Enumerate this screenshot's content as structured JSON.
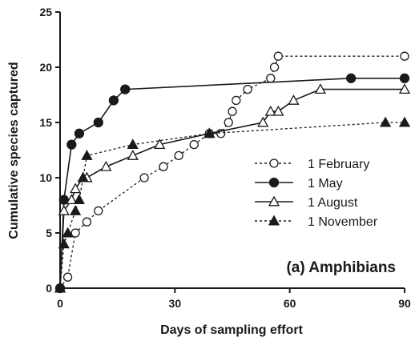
{
  "chart_data": {
    "type": "line",
    "xlabel": "Days of sampling effort",
    "ylabel": "Cumulative species captured",
    "xlim": [
      0,
      90
    ],
    "ylim": [
      0,
      25
    ],
    "xticks": [
      0,
      30,
      60,
      90
    ],
    "yticks": [
      0,
      5,
      10,
      15,
      20,
      25
    ],
    "grid": false,
    "legend_position": "right",
    "annotation": "(a) Amphibians",
    "series": [
      {
        "name": "1 February",
        "marker": "open-circle",
        "line": "dashed",
        "x": [
          0,
          2,
          4,
          7,
          10,
          22,
          27,
          31,
          35,
          39,
          42,
          44,
          45,
          46,
          49,
          55,
          56,
          57,
          90
        ],
        "y": [
          0,
          1,
          5,
          6,
          7,
          10,
          11,
          12,
          13,
          14,
          14,
          15,
          16,
          17,
          18,
          19,
          20,
          21,
          21
        ]
      },
      {
        "name": "1 May",
        "marker": "filled-circle",
        "line": "solid",
        "x": [
          0,
          1,
          3,
          5,
          10,
          14,
          17,
          76,
          90
        ],
        "y": [
          0,
          8,
          13,
          14,
          15,
          17,
          18,
          19,
          19
        ]
      },
      {
        "name": "1 August",
        "marker": "open-triangle",
        "line": "solid",
        "x": [
          0,
          1,
          3,
          4,
          6,
          7,
          12,
          19,
          26,
          39,
          53,
          55,
          57,
          61,
          68,
          90
        ],
        "y": [
          0,
          7,
          8,
          9,
          10,
          10,
          11,
          12,
          13,
          14,
          15,
          16,
          16,
          17,
          18,
          18
        ]
      },
      {
        "name": "1 November",
        "marker": "filled-triangle",
        "line": "dashed",
        "x": [
          0,
          1,
          2,
          4,
          5,
          6,
          7,
          19,
          39,
          85,
          90
        ],
        "y": [
          0,
          4,
          5,
          7,
          8,
          10,
          12,
          13,
          14,
          15,
          15
        ]
      }
    ]
  }
}
